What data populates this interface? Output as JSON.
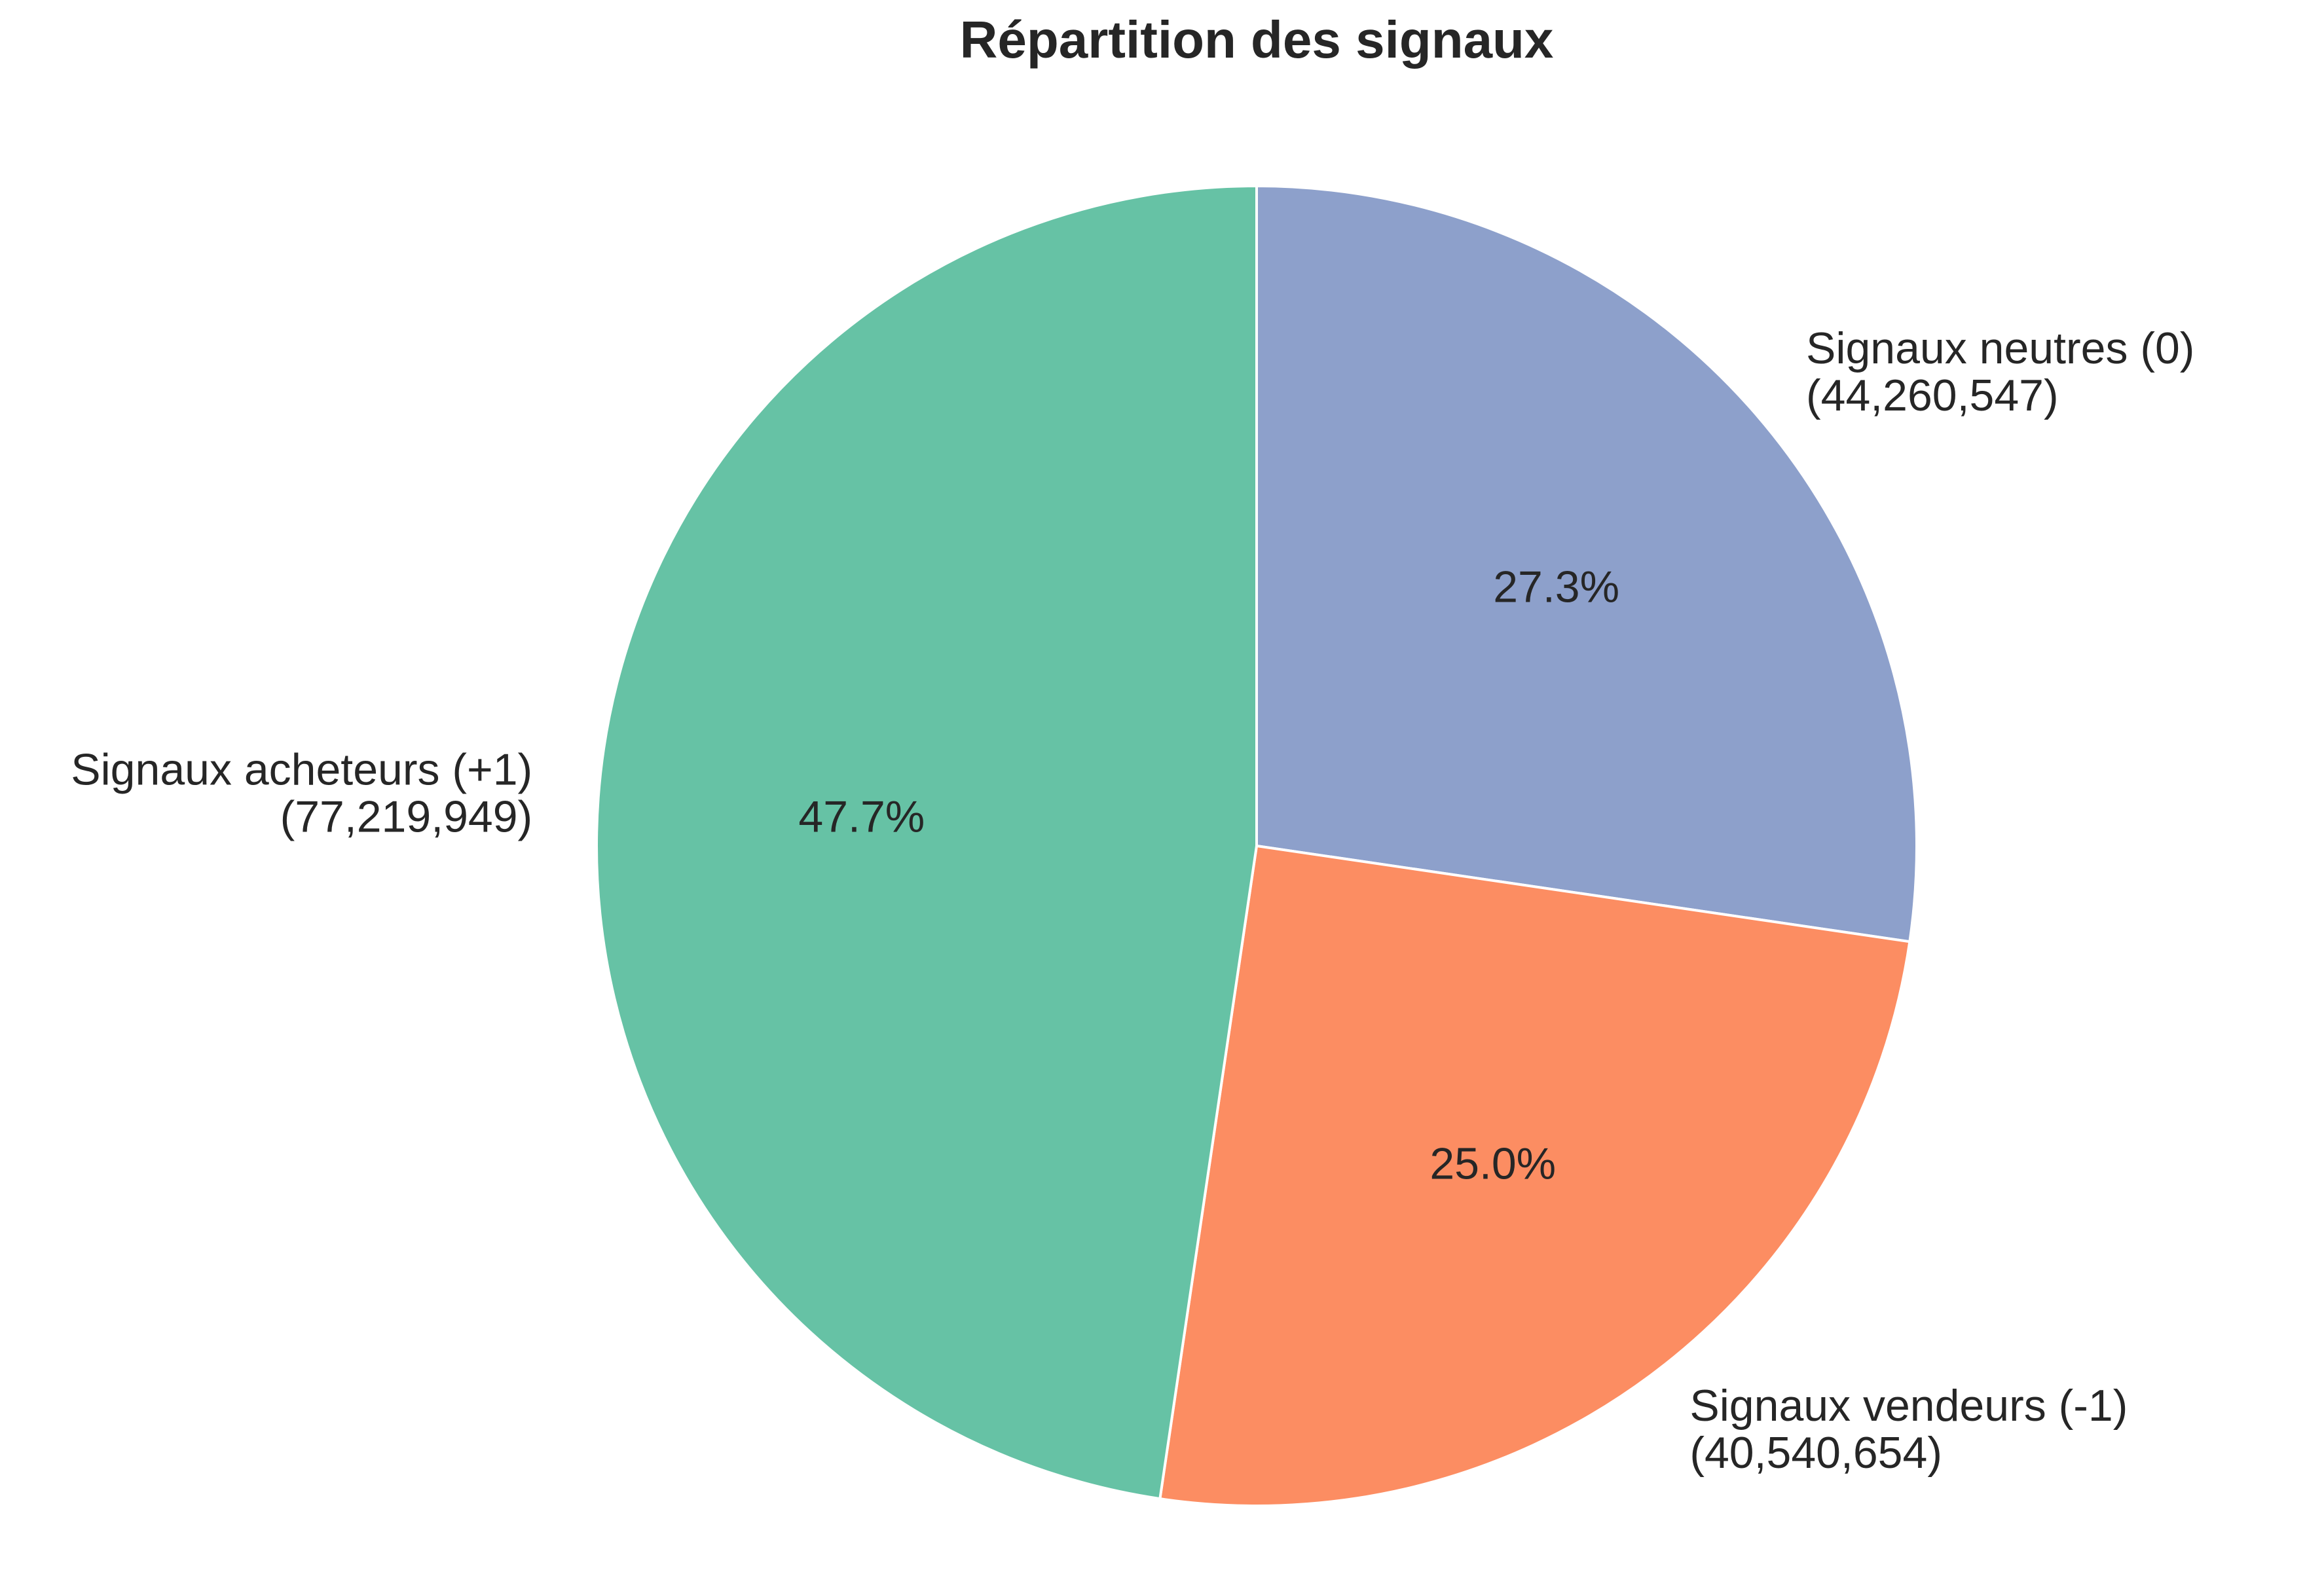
{
  "chart_data": {
    "type": "pie",
    "title": "Répartition des signaux",
    "start_angle_deg": 90,
    "direction": "clockwise",
    "slices": [
      {
        "label": "Signaux neutres (0)",
        "count_label": "(44,260,547)",
        "value": 44260547,
        "percent_label": "27.3%",
        "color": "#8da0cb"
      },
      {
        "label": "Signaux vendeurs (-1)",
        "count_label": "(40,540,654)",
        "value": 40540654,
        "percent_label": "25.0%",
        "color": "#fc8d62"
      },
      {
        "label": "Signaux acheteurs (+1)",
        "count_label": "(77,219,949)",
        "value": 77219949,
        "percent_label": "47.7%",
        "color": "#66c2a5"
      }
    ]
  }
}
